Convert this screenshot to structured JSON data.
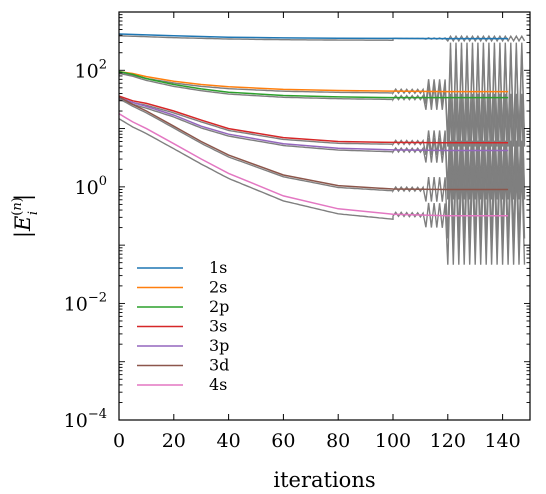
{
  "chart_data": {
    "type": "line",
    "xlabel": "iterations",
    "ylabel": "|E_i^(n)|",
    "xlim": [
      0,
      150
    ],
    "ylim": [
      0.0001,
      1000
    ],
    "yscale": "log",
    "xticks": [
      0,
      20,
      40,
      60,
      80,
      100,
      120,
      140
    ],
    "yticks": [
      {
        "value": 0.0001,
        "base": "10",
        "exp": "−4"
      },
      {
        "value": 0.01,
        "base": "10",
        "exp": "−2"
      },
      {
        "value": 1,
        "base": "10",
        "exp": "0"
      },
      {
        "value": 100,
        "base": "10",
        "exp": "2"
      }
    ],
    "grid": false,
    "legend_position": "lower-left",
    "series": [
      {
        "name": "1s",
        "color": "#1f77b4",
        "x": [
          0,
          10,
          20,
          40,
          60,
          80,
          100,
          120,
          142
        ],
        "y": [
          420,
          405,
          390,
          370,
          360,
          355,
          352,
          350,
          350
        ]
      },
      {
        "name": "2s",
        "color": "#ff7f0e",
        "x": [
          0,
          5,
          10,
          20,
          30,
          40,
          60,
          80,
          100,
          120,
          142
        ],
        "y": [
          95,
          88,
          78,
          65,
          57,
          52,
          47,
          45,
          44,
          43,
          43
        ]
      },
      {
        "name": "2p",
        "color": "#2ca02c",
        "x": [
          0,
          5,
          10,
          20,
          30,
          40,
          60,
          80,
          100,
          120,
          142
        ],
        "y": [
          95,
          85,
          72,
          57,
          48,
          42,
          37,
          35,
          34,
          34,
          34
        ]
      },
      {
        "name": "3s",
        "color": "#d62728",
        "x": [
          0,
          5,
          10,
          20,
          30,
          40,
          60,
          80,
          100,
          120,
          142
        ],
        "y": [
          36,
          30,
          27,
          20,
          14,
          10,
          7,
          6,
          5.8,
          5.7,
          5.7
        ]
      },
      {
        "name": "3p",
        "color": "#9467bd",
        "x": [
          0,
          5,
          10,
          20,
          30,
          40,
          60,
          80,
          100,
          120,
          142
        ],
        "y": [
          34,
          28,
          24,
          17,
          11,
          8,
          5.5,
          4.6,
          4.3,
          4.2,
          4.2
        ]
      },
      {
        "name": "3d",
        "color": "#8c564b",
        "x": [
          0,
          5,
          10,
          20,
          30,
          40,
          60,
          80,
          100,
          120,
          142
        ],
        "y": [
          35,
          26,
          20,
          11,
          6,
          3.5,
          1.6,
          1.05,
          0.92,
          0.9,
          0.9
        ]
      },
      {
        "name": "4s",
        "color": "#e377c2",
        "x": [
          0,
          5,
          10,
          20,
          30,
          40,
          60,
          80,
          100,
          120,
          142
        ],
        "y": [
          18,
          13,
          10,
          5.5,
          3,
          1.7,
          0.7,
          0.42,
          0.34,
          0.32,
          0.32
        ]
      }
    ],
    "grey_overlay": {
      "color": "#7f7f7f",
      "note_series": [
        "1s",
        "2s",
        "2p",
        "3s",
        "3p",
        "3d",
        "4s"
      ]
    }
  }
}
